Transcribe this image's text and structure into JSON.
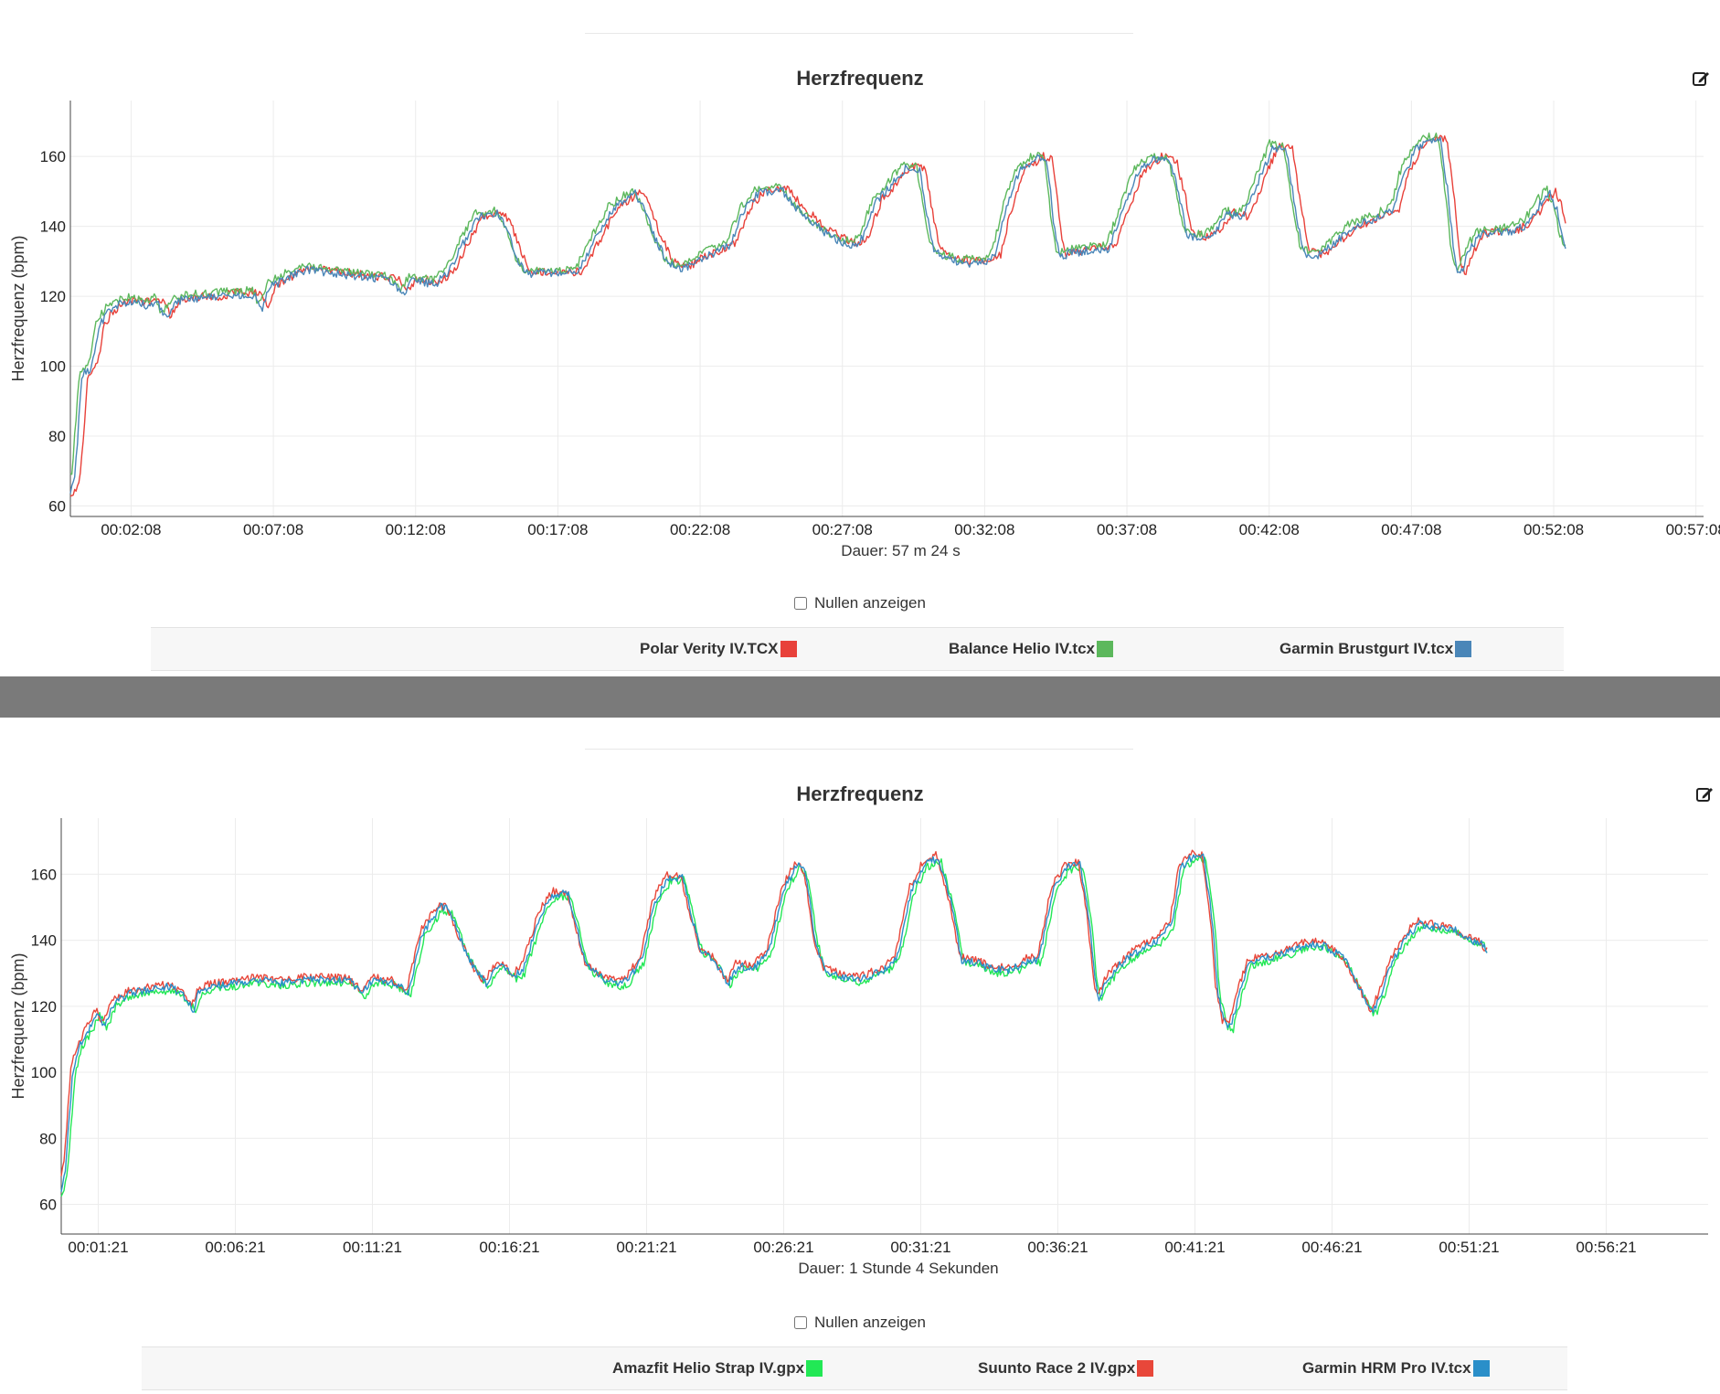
{
  "edit_icon": "edit-pencil-icon",
  "checkbox_checked": false,
  "chart_data": [
    {
      "type": "line",
      "title": "Herzfrequenz",
      "ylabel": "Herzfrequenz (bpm)",
      "duration_label": "Dauer: 57 m 24 s",
      "zero_toggle_label": "Nullen anzeigen",
      "x_unit": "seconds",
      "xlim": [
        0,
        3444
      ],
      "ylim": [
        57,
        176
      ],
      "yticks": [
        60,
        80,
        100,
        120,
        140,
        160
      ],
      "xtick_seconds": [
        128,
        428,
        728,
        1028,
        1328,
        1628,
        1928,
        2228,
        2528,
        2828,
        3128,
        3428
      ],
      "xtick_labels": [
        "00:02:08",
        "00:07:08",
        "00:12:08",
        "00:17:08",
        "00:22:08",
        "00:27:08",
        "00:32:08",
        "00:37:08",
        "00:42:08",
        "00:47:08",
        "00:52:08",
        "00:57:08"
      ],
      "grid": true,
      "legend_position": "bottom",
      "trace": [
        [
          0,
          64
        ],
        [
          10,
          70
        ],
        [
          25,
          98
        ],
        [
          45,
          100
        ],
        [
          60,
          112
        ],
        [
          80,
          116
        ],
        [
          100,
          118
        ],
        [
          130,
          119
        ],
        [
          160,
          118
        ],
        [
          185,
          119
        ],
        [
          200,
          114
        ],
        [
          220,
          119
        ],
        [
          260,
          120
        ],
        [
          300,
          120
        ],
        [
          340,
          121
        ],
        [
          390,
          121
        ],
        [
          405,
          117
        ],
        [
          420,
          123
        ],
        [
          460,
          126
        ],
        [
          500,
          128
        ],
        [
          560,
          127
        ],
        [
          620,
          126
        ],
        [
          680,
          125
        ],
        [
          700,
          121
        ],
        [
          720,
          125
        ],
        [
          770,
          124
        ],
        [
          800,
          128
        ],
        [
          830,
          136
        ],
        [
          860,
          143
        ],
        [
          900,
          144
        ],
        [
          920,
          140
        ],
        [
          940,
          132
        ],
        [
          960,
          127
        ],
        [
          1000,
          127
        ],
        [
          1040,
          127
        ],
        [
          1070,
          127
        ],
        [
          1100,
          135
        ],
        [
          1140,
          145
        ],
        [
          1190,
          150
        ],
        [
          1210,
          146
        ],
        [
          1230,
          138
        ],
        [
          1260,
          130
        ],
        [
          1290,
          128
        ],
        [
          1320,
          131
        ],
        [
          1360,
          133
        ],
        [
          1390,
          135
        ],
        [
          1420,
          145
        ],
        [
          1450,
          150
        ],
        [
          1500,
          151
        ],
        [
          1530,
          146
        ],
        [
          1570,
          141
        ],
        [
          1610,
          137
        ],
        [
          1650,
          135
        ],
        [
          1670,
          137
        ],
        [
          1700,
          148
        ],
        [
          1730,
          152
        ],
        [
          1760,
          157
        ],
        [
          1790,
          157
        ],
        [
          1805,
          145
        ],
        [
          1820,
          134
        ],
        [
          1850,
          131
        ],
        [
          1890,
          130
        ],
        [
          1930,
          130
        ],
        [
          1950,
          132
        ],
        [
          1970,
          144
        ],
        [
          2000,
          156
        ],
        [
          2040,
          160
        ],
        [
          2060,
          159
        ],
        [
          2075,
          140
        ],
        [
          2085,
          132
        ],
        [
          2120,
          133
        ],
        [
          2160,
          134
        ],
        [
          2190,
          134
        ],
        [
          2220,
          145
        ],
        [
          2250,
          156
        ],
        [
          2290,
          160
        ],
        [
          2320,
          159
        ],
        [
          2340,
          148
        ],
        [
          2355,
          138
        ],
        [
          2390,
          137
        ],
        [
          2420,
          140
        ],
        [
          2440,
          144
        ],
        [
          2470,
          143
        ],
        [
          2490,
          148
        ],
        [
          2510,
          155
        ],
        [
          2535,
          163
        ],
        [
          2565,
          162
        ],
        [
          2580,
          148
        ],
        [
          2600,
          133
        ],
        [
          2630,
          132
        ],
        [
          2660,
          135
        ],
        [
          2700,
          140
        ],
        [
          2740,
          142
        ],
        [
          2790,
          145
        ],
        [
          2810,
          155
        ],
        [
          2840,
          163
        ],
        [
          2870,
          165
        ],
        [
          2890,
          165
        ],
        [
          2905,
          150
        ],
        [
          2920,
          130
        ],
        [
          2930,
          126
        ],
        [
          2945,
          132
        ],
        [
          2970,
          138
        ],
        [
          3010,
          139
        ],
        [
          3040,
          139
        ],
        [
          3070,
          141
        ],
        [
          3100,
          147
        ],
        [
          3120,
          150
        ],
        [
          3135,
          145
        ],
        [
          3145,
          138
        ],
        [
          3155,
          134
        ]
      ],
      "series": [
        {
          "name": "Polar Verity IV.TCX",
          "color": "#e8413a",
          "x_offset": 12,
          "y_offset": 0
        },
        {
          "name": "Balance Helio IV.tcx",
          "color": "#5cb85c",
          "x_offset": -6,
          "y_offset": 0.6
        },
        {
          "name": "Garmin Brustgurt IV.tcx",
          "color": "#4a86b8",
          "x_offset": 0,
          "y_offset": -0.5
        }
      ]
    },
    {
      "type": "line",
      "title": "Herzfrequenz",
      "ylabel": "Herzfrequenz (bpm)",
      "duration_label": "Dauer: 1 Stunde 4 Sekunden",
      "zero_toggle_label": "Nullen anzeigen",
      "x_unit": "seconds",
      "xlim": [
        0,
        3604
      ],
      "ylim": [
        51,
        177
      ],
      "yticks": [
        60,
        80,
        100,
        120,
        140,
        160
      ],
      "xtick_seconds": [
        81,
        381,
        681,
        981,
        1281,
        1581,
        1881,
        2181,
        2481,
        2781,
        3081,
        3381
      ],
      "xtick_labels": [
        "00:01:21",
        "00:06:21",
        "00:11:21",
        "00:16:21",
        "00:21:21",
        "00:26:21",
        "00:31:21",
        "00:36:21",
        "00:41:21",
        "00:46:21",
        "00:51:21",
        "00:56:21"
      ],
      "grid": true,
      "legend_position": "bottom",
      "trace": [
        [
          0,
          64
        ],
        [
          10,
          72
        ],
        [
          25,
          100
        ],
        [
          40,
          108
        ],
        [
          60,
          113
        ],
        [
          80,
          118
        ],
        [
          95,
          114
        ],
        [
          115,
          121
        ],
        [
          150,
          124
        ],
        [
          200,
          125
        ],
        [
          240,
          126
        ],
        [
          270,
          123
        ],
        [
          290,
          119
        ],
        [
          300,
          124
        ],
        [
          330,
          126
        ],
        [
          380,
          127
        ],
        [
          430,
          128
        ],
        [
          480,
          127
        ],
        [
          530,
          128
        ],
        [
          580,
          128
        ],
        [
          630,
          128
        ],
        [
          660,
          124
        ],
        [
          680,
          128
        ],
        [
          730,
          127
        ],
        [
          760,
          124
        ],
        [
          790,
          142
        ],
        [
          830,
          150
        ],
        [
          850,
          149
        ],
        [
          880,
          138
        ],
        [
          910,
          130
        ],
        [
          930,
          127
        ],
        [
          960,
          133
        ],
        [
          990,
          129
        ],
        [
          1010,
          131
        ],
        [
          1050,
          148
        ],
        [
          1080,
          154
        ],
        [
          1110,
          154
        ],
        [
          1130,
          143
        ],
        [
          1150,
          132
        ],
        [
          1190,
          128
        ],
        [
          1220,
          127
        ],
        [
          1240,
          128
        ],
        [
          1270,
          134
        ],
        [
          1300,
          152
        ],
        [
          1330,
          159
        ],
        [
          1360,
          159
        ],
        [
          1380,
          147
        ],
        [
          1400,
          137
        ],
        [
          1430,
          134
        ],
        [
          1450,
          129
        ],
        [
          1460,
          127
        ],
        [
          1480,
          132
        ],
        [
          1520,
          132
        ],
        [
          1550,
          137
        ],
        [
          1580,
          155
        ],
        [
          1610,
          163
        ],
        [
          1630,
          160
        ],
        [
          1650,
          140
        ],
        [
          1670,
          131
        ],
        [
          1710,
          129
        ],
        [
          1750,
          128
        ],
        [
          1800,
          131
        ],
        [
          1830,
          135
        ],
        [
          1860,
          155
        ],
        [
          1890,
          163
        ],
        [
          1920,
          165
        ],
        [
          1950,
          150
        ],
        [
          1970,
          134
        ],
        [
          2010,
          133
        ],
        [
          2040,
          131
        ],
        [
          2080,
          131
        ],
        [
          2120,
          134
        ],
        [
          2140,
          134
        ],
        [
          2170,
          155
        ],
        [
          2200,
          162
        ],
        [
          2230,
          163
        ],
        [
          2250,
          146
        ],
        [
          2260,
          131
        ],
        [
          2270,
          122
        ],
        [
          2290,
          128
        ],
        [
          2320,
          133
        ],
        [
          2350,
          136
        ],
        [
          2370,
          138
        ],
        [
          2400,
          140
        ],
        [
          2430,
          145
        ],
        [
          2450,
          162
        ],
        [
          2480,
          166
        ],
        [
          2500,
          165
        ],
        [
          2520,
          145
        ],
        [
          2530,
          125
        ],
        [
          2545,
          115
        ],
        [
          2560,
          114
        ],
        [
          2580,
          125
        ],
        [
          2600,
          133
        ],
        [
          2620,
          134
        ],
        [
          2650,
          135
        ],
        [
          2680,
          136
        ],
        [
          2710,
          138
        ],
        [
          2740,
          139
        ],
        [
          2770,
          138
        ],
        [
          2810,
          134
        ],
        [
          2840,
          126
        ],
        [
          2870,
          118
        ],
        [
          2890,
          124
        ],
        [
          2910,
          133
        ],
        [
          2940,
          140
        ],
        [
          2970,
          145
        ],
        [
          3010,
          144
        ],
        [
          3050,
          143
        ],
        [
          3080,
          140
        ],
        [
          3110,
          139
        ],
        [
          3120,
          136
        ]
      ],
      "series": [
        {
          "name": "Amazfit Helio Strap IV.gpx",
          "color": "#22e855",
          "x_offset": 5,
          "y_offset": -0.8
        },
        {
          "name": "Suunto Race 2 IV.gpx",
          "color": "#e8473a",
          "x_offset": -4,
          "y_offset": 0.8
        },
        {
          "name": "Garmin HRM Pro IV.tcx",
          "color": "#2a8fc9",
          "x_offset": 0,
          "y_offset": 0
        }
      ]
    }
  ]
}
